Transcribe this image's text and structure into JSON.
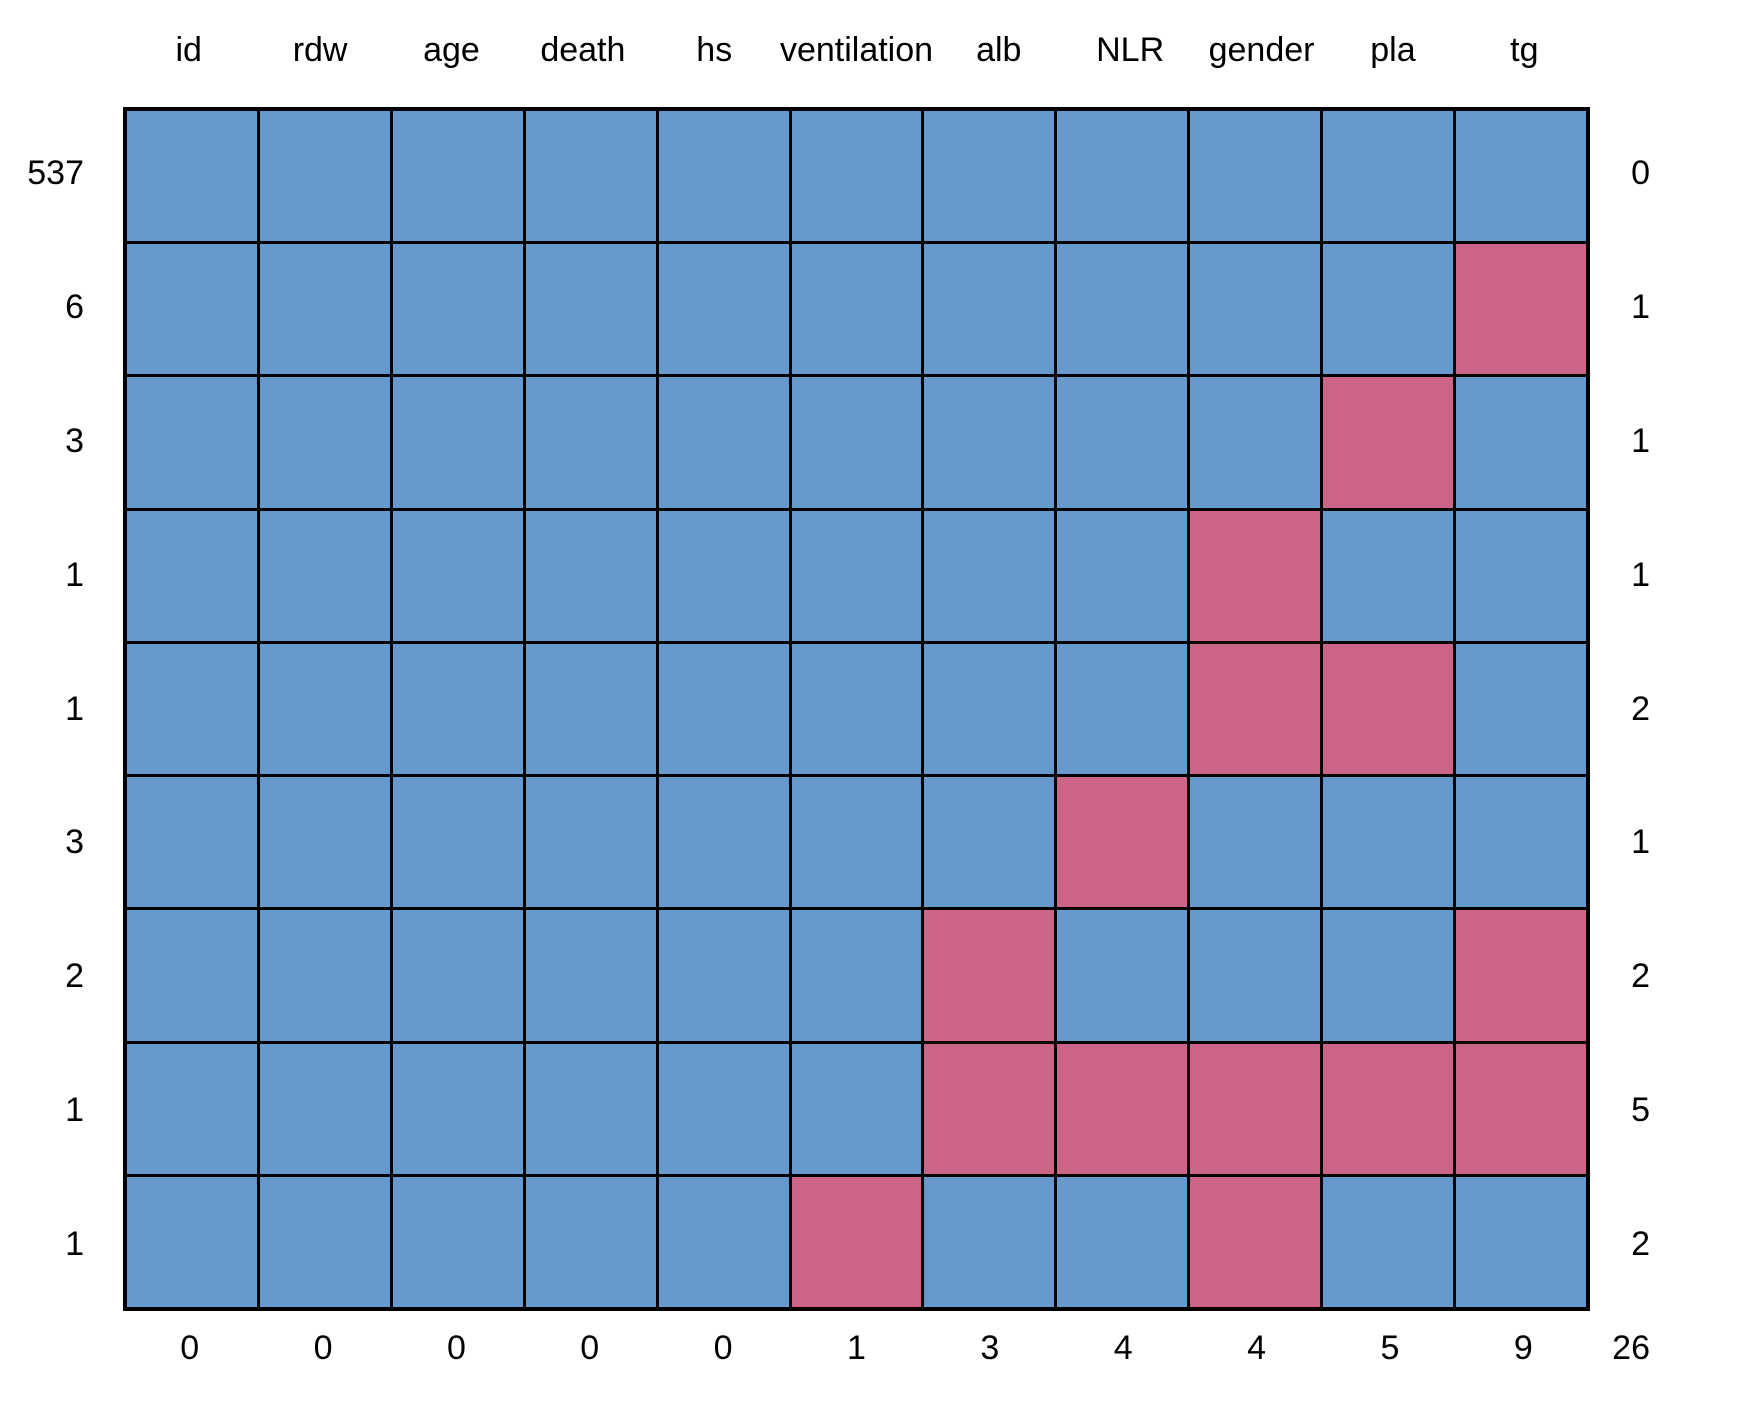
{
  "chart_data": {
    "type": "heatmap",
    "subtype": "missing-data-pattern",
    "title": "",
    "columns": [
      "id",
      "rdw",
      "age",
      "death",
      "hs",
      "ventilation",
      "alb",
      "NLR",
      "gender",
      "pla",
      "tg"
    ],
    "rows": [
      {
        "count": "537",
        "missing_count": "0",
        "pattern": [
          1,
          1,
          1,
          1,
          1,
          1,
          1,
          1,
          1,
          1,
          1
        ]
      },
      {
        "count": "6",
        "missing_count": "1",
        "pattern": [
          1,
          1,
          1,
          1,
          1,
          1,
          1,
          1,
          1,
          1,
          0
        ]
      },
      {
        "count": "3",
        "missing_count": "1",
        "pattern": [
          1,
          1,
          1,
          1,
          1,
          1,
          1,
          1,
          1,
          0,
          1
        ]
      },
      {
        "count": "1",
        "missing_count": "1",
        "pattern": [
          1,
          1,
          1,
          1,
          1,
          1,
          1,
          1,
          0,
          1,
          1
        ]
      },
      {
        "count": "1",
        "missing_count": "2",
        "pattern": [
          1,
          1,
          1,
          1,
          1,
          1,
          1,
          1,
          0,
          0,
          1
        ]
      },
      {
        "count": "3",
        "missing_count": "1",
        "pattern": [
          1,
          1,
          1,
          1,
          1,
          1,
          1,
          0,
          1,
          1,
          1
        ]
      },
      {
        "count": "2",
        "missing_count": "2",
        "pattern": [
          1,
          1,
          1,
          1,
          1,
          1,
          0,
          1,
          1,
          1,
          0
        ]
      },
      {
        "count": "1",
        "missing_count": "5",
        "pattern": [
          1,
          1,
          1,
          1,
          1,
          1,
          0,
          0,
          0,
          0,
          0
        ]
      },
      {
        "count": "1",
        "missing_count": "2",
        "pattern": [
          1,
          1,
          1,
          1,
          1,
          0,
          1,
          1,
          0,
          1,
          1
        ]
      }
    ],
    "column_missing_counts": [
      "0",
      "0",
      "0",
      "0",
      "0",
      "1",
      "3",
      "4",
      "4",
      "5",
      "9"
    ],
    "total_missing": "26",
    "legend": {
      "present_color": "#6699CE",
      "missing_color": "#CC6589"
    },
    "grid_line_color": "#000000",
    "background_color": "#FFFFFF",
    "layout": {
      "grid_on": true,
      "left_axis": "pattern frequency (rows)",
      "right_axis": "missing variables per pattern",
      "bottom_axis": "missing values per variable"
    }
  }
}
